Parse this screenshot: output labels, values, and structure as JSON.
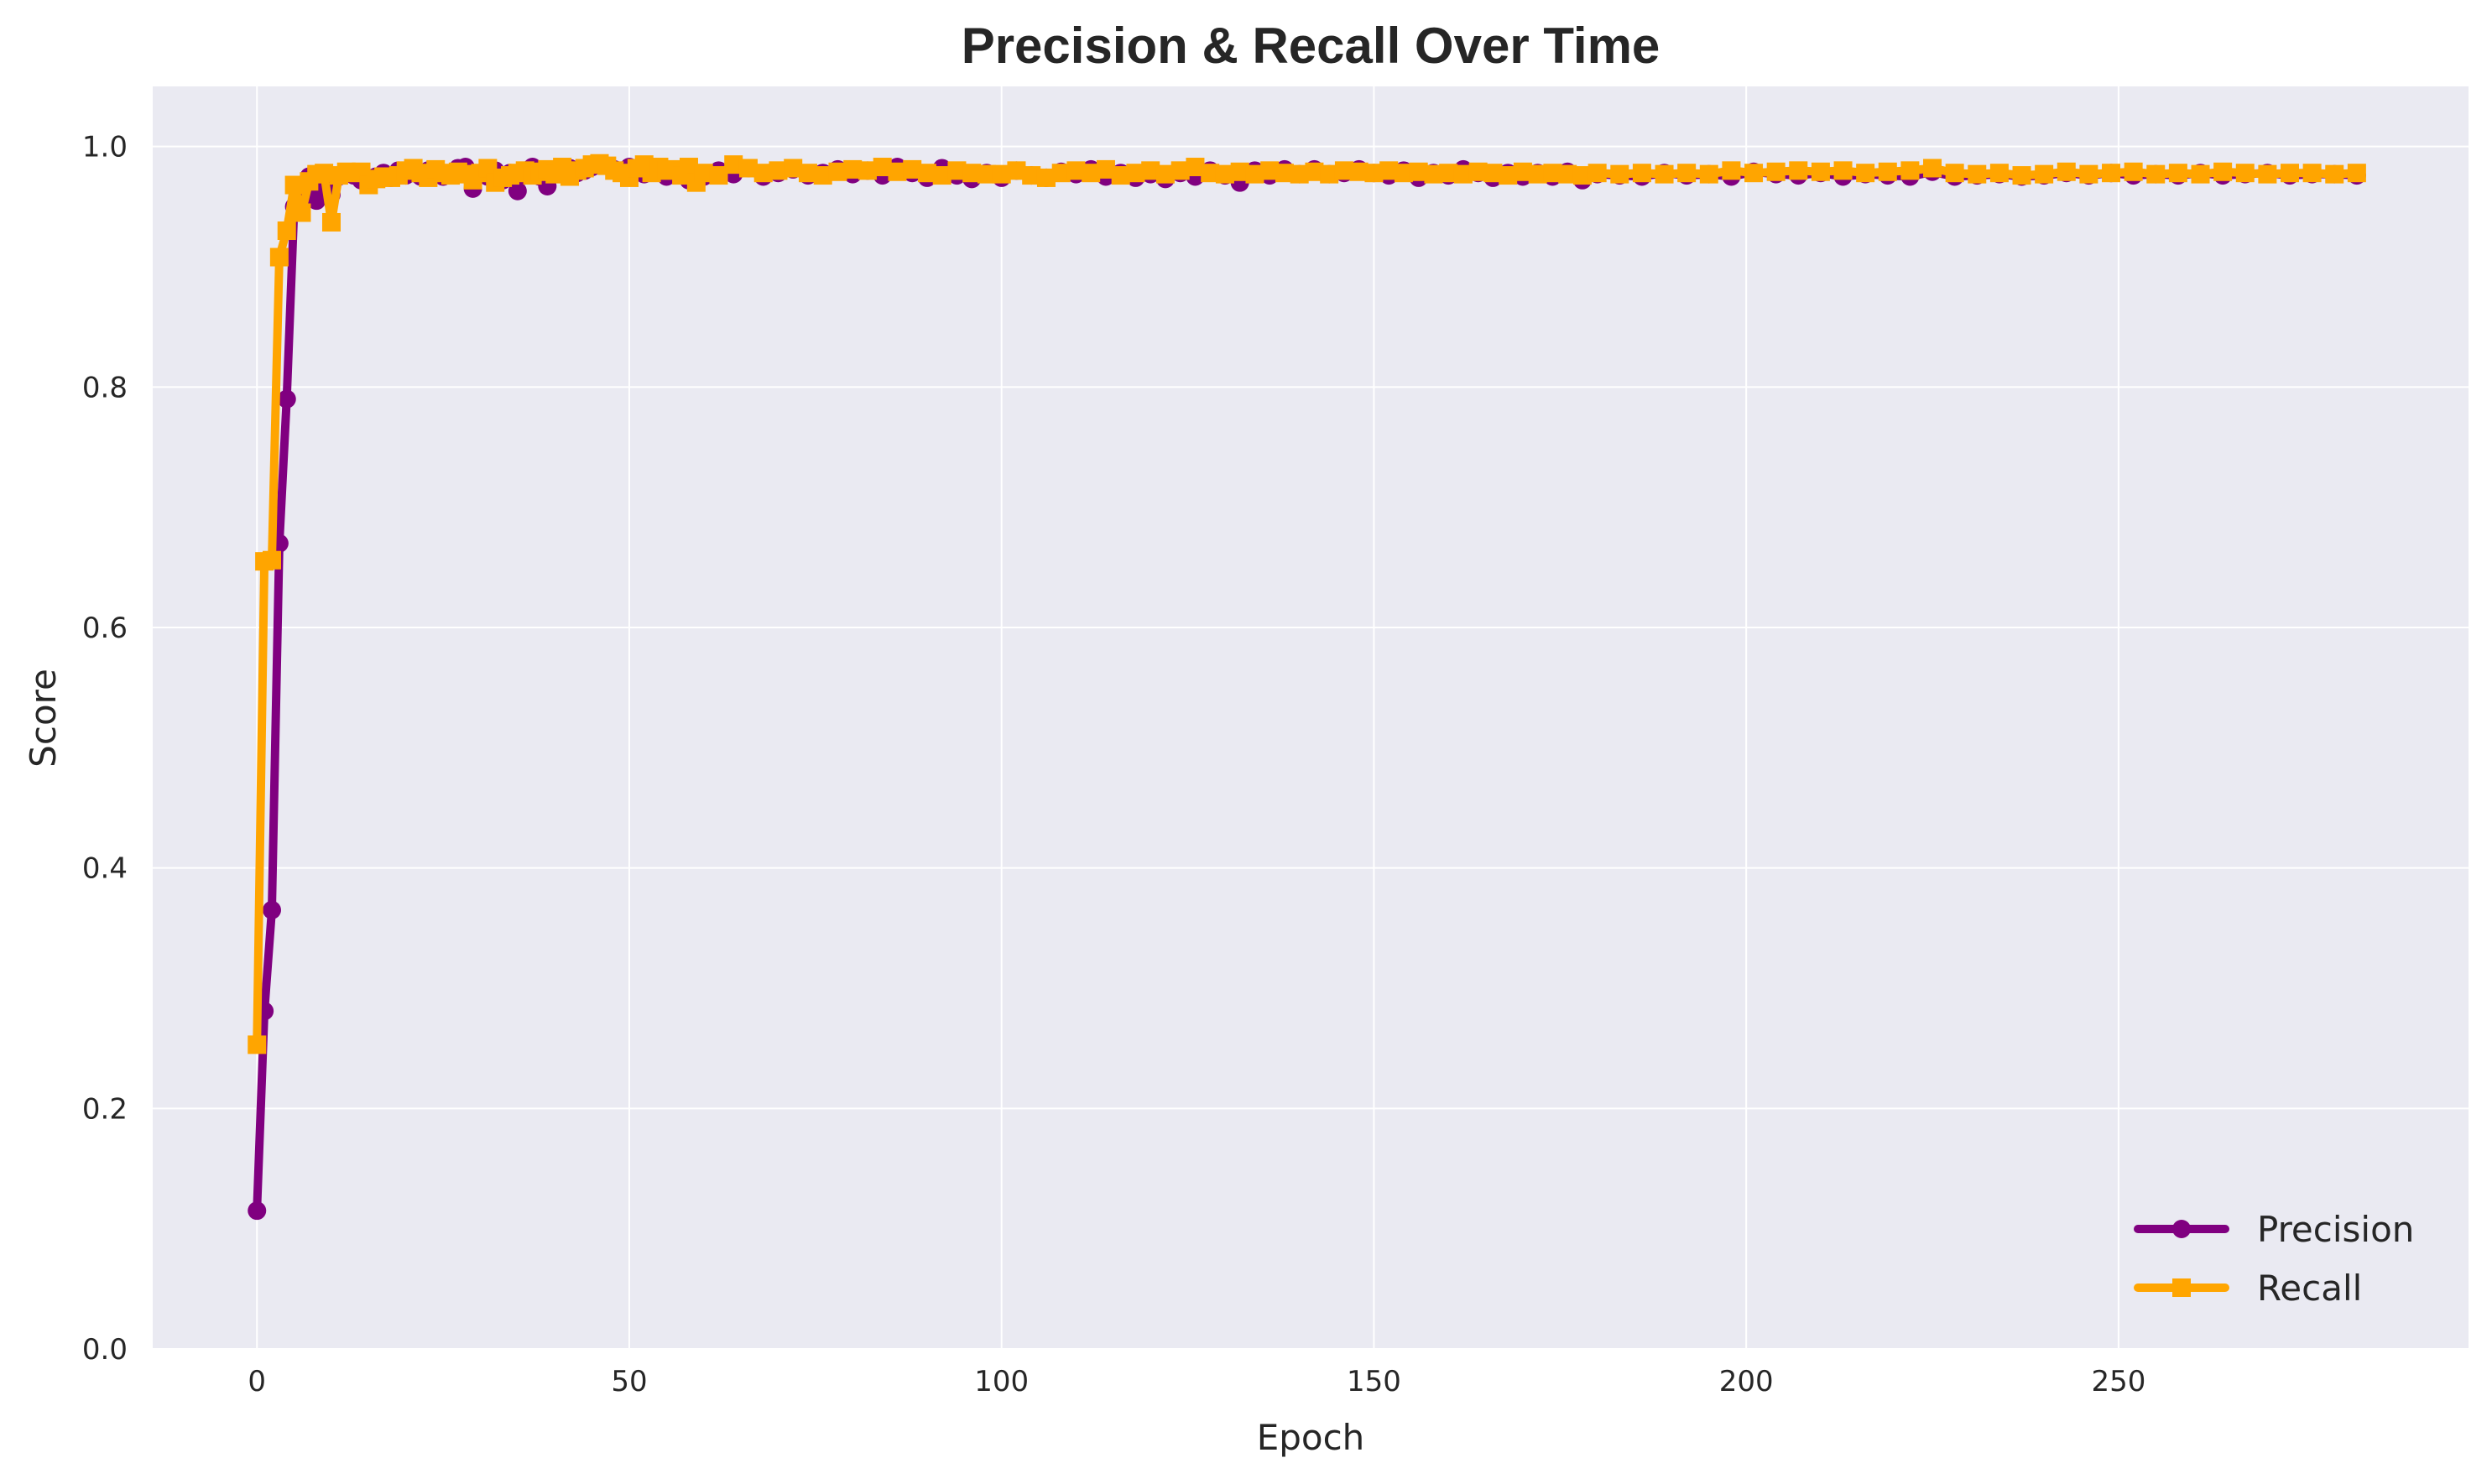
{
  "chart_data": {
    "type": "line",
    "title": "Precision & Recall Over Time",
    "xlabel": "Epoch",
    "ylabel": "Score",
    "xlim": [
      -14,
      297
    ],
    "ylim": [
      0.0,
      1.05
    ],
    "xticks": [
      0,
      50,
      100,
      150,
      200,
      250
    ],
    "yticks": [
      0.0,
      0.2,
      0.4,
      0.6,
      0.8,
      1.0
    ],
    "ytick_labels": [
      "0.0",
      "0.2",
      "0.4",
      "0.6",
      "0.8",
      "1.0"
    ],
    "grid": true,
    "legend_position": "lower-right",
    "colors": {
      "background": "#eaeaf2",
      "grid": "#ffffff",
      "precision": "#800080",
      "recall": "#ffa500"
    },
    "series": [
      {
        "name": "Precision",
        "marker": "circle",
        "color": "#800080",
        "x": [
          0,
          1,
          2,
          3,
          4,
          5,
          6,
          7,
          8,
          9,
          10,
          11,
          12,
          13,
          14,
          15,
          16,
          17,
          18,
          19,
          20,
          21,
          22,
          23,
          24,
          25,
          26,
          27,
          28,
          29,
          30,
          31,
          32,
          33,
          34,
          35,
          36,
          37,
          38,
          39,
          40,
          41,
          42,
          43,
          44,
          45,
          46,
          47,
          48,
          49,
          50,
          51,
          52,
          53,
          54,
          55,
          56,
          57,
          58,
          59,
          60,
          62,
          64,
          66,
          68,
          70,
          72,
          74,
          76,
          78,
          80,
          82,
          84,
          86,
          88,
          90,
          92,
          94,
          96,
          98,
          100,
          102,
          104,
          106,
          108,
          110,
          112,
          114,
          116,
          118,
          120,
          122,
          124,
          126,
          128,
          130,
          132,
          134,
          136,
          138,
          140,
          142,
          144,
          146,
          148,
          150,
          152,
          154,
          156,
          158,
          160,
          162,
          164,
          166,
          168,
          170,
          172,
          174,
          176,
          178,
          180,
          183,
          186,
          189,
          192,
          195,
          198,
          201,
          204,
          207,
          210,
          213,
          216,
          219,
          222,
          225,
          228,
          231,
          234,
          237,
          240,
          243,
          246,
          249,
          252,
          255,
          258,
          261,
          264,
          267,
          270,
          273,
          276,
          279,
          282
        ],
        "values": [
          0.115,
          0.281,
          0.365,
          0.67,
          0.79,
          0.95,
          0.96,
          0.975,
          0.955,
          0.97,
          0.96,
          0.975,
          0.978,
          0.976,
          0.972,
          0.968,
          0.975,
          0.978,
          0.974,
          0.98,
          0.976,
          0.978,
          0.975,
          0.98,
          0.977,
          0.975,
          0.978,
          0.982,
          0.983,
          0.965,
          0.978,
          0.975,
          0.98,
          0.972,
          0.978,
          0.963,
          0.98,
          0.983,
          0.975,
          0.967,
          0.98,
          0.978,
          0.982,
          0.978,
          0.98,
          0.983,
          0.985,
          0.984,
          0.981,
          0.979,
          0.983,
          0.98,
          0.977,
          0.982,
          0.98,
          0.975,
          0.978,
          0.98,
          0.972,
          0.978,
          0.975,
          0.98,
          0.977,
          0.982,
          0.975,
          0.978,
          0.981,
          0.976,
          0.978,
          0.981,
          0.977,
          0.98,
          0.976,
          0.983,
          0.978,
          0.974,
          0.982,
          0.976,
          0.973,
          0.978,
          0.974,
          0.98,
          0.976,
          0.974,
          0.979,
          0.977,
          0.981,
          0.975,
          0.978,
          0.974,
          0.977,
          0.973,
          0.978,
          0.975,
          0.98,
          0.976,
          0.97,
          0.98,
          0.976,
          0.981,
          0.977,
          0.981,
          0.977,
          0.978,
          0.981,
          0.978,
          0.976,
          0.98,
          0.974,
          0.978,
          0.976,
          0.981,
          0.978,
          0.974,
          0.978,
          0.975,
          0.978,
          0.975,
          0.979,
          0.972,
          0.977,
          0.976,
          0.975,
          0.978,
          0.976,
          0.977,
          0.975,
          0.979,
          0.977,
          0.976,
          0.978,
          0.975,
          0.977,
          0.976,
          0.975,
          0.979,
          0.975,
          0.976,
          0.977,
          0.975,
          0.976,
          0.978,
          0.976,
          0.978,
          0.976,
          0.977,
          0.976,
          0.978,
          0.976,
          0.977,
          0.978,
          0.976,
          0.977,
          0.977,
          0.976
        ]
      },
      {
        "name": "Recall",
        "marker": "square",
        "color": "#ffa500",
        "x": [
          0,
          1,
          2,
          3,
          4,
          5,
          6,
          7,
          8,
          9,
          10,
          11,
          12,
          13,
          14,
          15,
          16,
          17,
          18,
          19,
          20,
          21,
          22,
          23,
          24,
          25,
          26,
          27,
          28,
          29,
          30,
          31,
          32,
          33,
          34,
          35,
          36,
          37,
          38,
          39,
          40,
          41,
          42,
          43,
          44,
          45,
          46,
          47,
          48,
          49,
          50,
          51,
          52,
          53,
          54,
          55,
          56,
          57,
          58,
          59,
          60,
          62,
          64,
          66,
          68,
          70,
          72,
          74,
          76,
          78,
          80,
          82,
          84,
          86,
          88,
          90,
          92,
          94,
          96,
          98,
          100,
          102,
          104,
          106,
          108,
          110,
          112,
          114,
          116,
          118,
          120,
          122,
          124,
          126,
          128,
          130,
          132,
          134,
          136,
          138,
          140,
          142,
          144,
          146,
          148,
          150,
          152,
          154,
          156,
          158,
          160,
          162,
          164,
          166,
          168,
          170,
          172,
          174,
          176,
          178,
          180,
          183,
          186,
          189,
          192,
          195,
          198,
          201,
          204,
          207,
          210,
          213,
          216,
          219,
          222,
          225,
          228,
          231,
          234,
          237,
          240,
          243,
          246,
          249,
          252,
          255,
          258,
          261,
          264,
          267,
          270,
          273,
          276,
          279,
          282
        ],
        "values": [
          0.253,
          0.655,
          0.656,
          0.908,
          0.93,
          0.968,
          0.945,
          0.971,
          0.977,
          0.978,
          0.937,
          0.976,
          0.979,
          0.978,
          0.979,
          0.968,
          0.973,
          0.975,
          0.974,
          0.976,
          0.98,
          0.982,
          0.978,
          0.974,
          0.981,
          0.978,
          0.976,
          0.979,
          0.977,
          0.972,
          0.978,
          0.982,
          0.97,
          0.974,
          0.976,
          0.978,
          0.98,
          0.976,
          0.979,
          0.981,
          0.977,
          0.983,
          0.975,
          0.98,
          0.982,
          0.985,
          0.986,
          0.984,
          0.98,
          0.978,
          0.974,
          0.982,
          0.985,
          0.978,
          0.983,
          0.98,
          0.981,
          0.976,
          0.983,
          0.97,
          0.978,
          0.976,
          0.985,
          0.982,
          0.978,
          0.98,
          0.982,
          0.978,
          0.976,
          0.979,
          0.981,
          0.98,
          0.983,
          0.979,
          0.981,
          0.978,
          0.976,
          0.98,
          0.978,
          0.977,
          0.977,
          0.98,
          0.976,
          0.974,
          0.978,
          0.98,
          0.978,
          0.981,
          0.976,
          0.978,
          0.98,
          0.977,
          0.98,
          0.983,
          0.978,
          0.977,
          0.979,
          0.977,
          0.98,
          0.978,
          0.977,
          0.979,
          0.977,
          0.98,
          0.979,
          0.978,
          0.98,
          0.978,
          0.979,
          0.977,
          0.978,
          0.977,
          0.979,
          0.978,
          0.976,
          0.979,
          0.977,
          0.978,
          0.977,
          0.976,
          0.978,
          0.977,
          0.978,
          0.977,
          0.978,
          0.977,
          0.98,
          0.978,
          0.979,
          0.98,
          0.979,
          0.98,
          0.978,
          0.979,
          0.98,
          0.982,
          0.978,
          0.977,
          0.978,
          0.976,
          0.977,
          0.979,
          0.977,
          0.978,
          0.979,
          0.977,
          0.978,
          0.977,
          0.979,
          0.978,
          0.977,
          0.978,
          0.978,
          0.977,
          0.978
        ]
      }
    ]
  }
}
